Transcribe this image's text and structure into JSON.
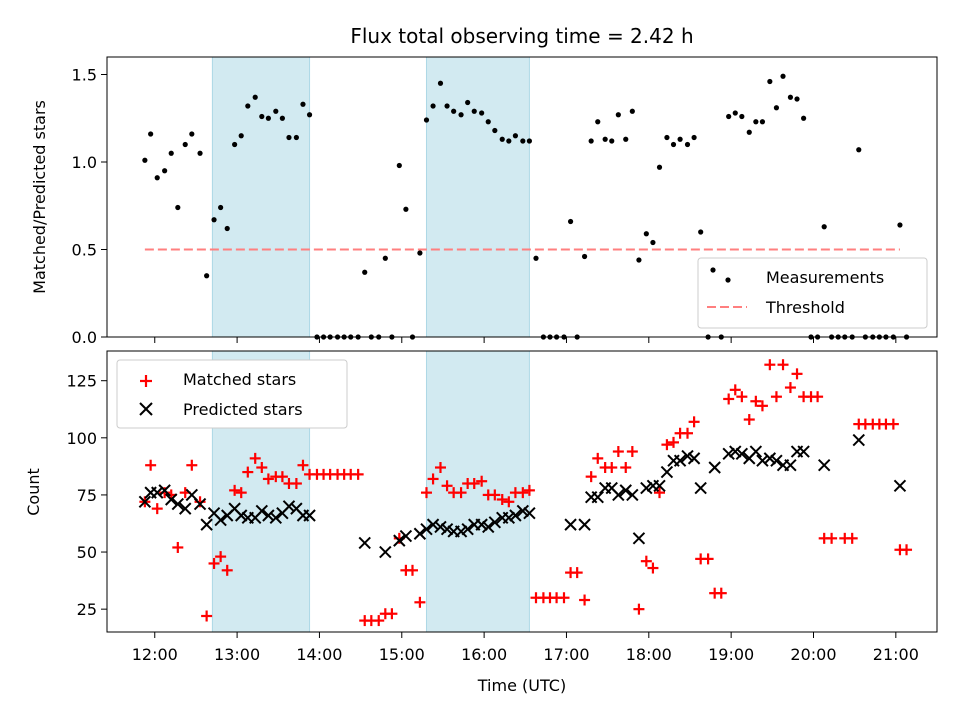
{
  "title": "Flux total observing time = 2.42 h",
  "top": {
    "ylabel": "Matched/Predicted stars",
    "ylim": [
      0,
      1.6
    ],
    "yticks": [
      0.0,
      0.5,
      1.0,
      1.5
    ],
    "ytick_labels": [
      "0.0",
      "0.5",
      "1.0",
      "1.5"
    ],
    "threshold": 0.5,
    "legend": {
      "placement": "lower-right",
      "measurements": "Measurements",
      "threshold": "Threshold"
    },
    "measurements": [
      [
        11.88,
        1.01
      ],
      [
        11.95,
        1.16
      ],
      [
        12.03,
        0.91
      ],
      [
        12.12,
        0.95
      ],
      [
        12.2,
        1.05
      ],
      [
        12.28,
        0.74
      ],
      [
        12.37,
        1.1
      ],
      [
        12.45,
        1.16
      ],
      [
        12.55,
        1.05
      ],
      [
        12.63,
        0.35
      ],
      [
        12.72,
        0.67
      ],
      [
        12.8,
        0.74
      ],
      [
        12.88,
        0.62
      ],
      [
        12.97,
        1.1
      ],
      [
        13.05,
        1.15
      ],
      [
        13.13,
        1.32
      ],
      [
        13.22,
        1.37
      ],
      [
        13.3,
        1.26
      ],
      [
        13.38,
        1.25
      ],
      [
        13.47,
        1.29
      ],
      [
        13.55,
        1.25
      ],
      [
        13.63,
        1.14
      ],
      [
        13.72,
        1.14
      ],
      [
        13.8,
        1.33
      ],
      [
        13.88,
        1.27
      ],
      [
        13.97,
        0
      ],
      [
        14.05,
        0
      ],
      [
        14.13,
        0
      ],
      [
        14.22,
        0
      ],
      [
        14.3,
        0
      ],
      [
        14.38,
        0
      ],
      [
        14.47,
        0
      ],
      [
        14.55,
        0.37
      ],
      [
        14.63,
        0
      ],
      [
        14.72,
        0
      ],
      [
        14.8,
        0.45
      ],
      [
        14.88,
        0
      ],
      [
        14.97,
        0.98
      ],
      [
        15.05,
        0.73
      ],
      [
        15.13,
        0
      ],
      [
        15.22,
        0.48
      ],
      [
        15.3,
        1.24
      ],
      [
        15.38,
        1.32
      ],
      [
        15.47,
        1.45
      ],
      [
        15.55,
        1.32
      ],
      [
        15.63,
        1.29
      ],
      [
        15.72,
        1.27
      ],
      [
        15.8,
        1.34
      ],
      [
        15.88,
        1.29
      ],
      [
        15.97,
        1.28
      ],
      [
        16.05,
        1.23
      ],
      [
        16.13,
        1.18
      ],
      [
        16.22,
        1.13
      ],
      [
        16.3,
        1.12
      ],
      [
        16.38,
        1.15
      ],
      [
        16.47,
        1.12
      ],
      [
        16.55,
        1.12
      ],
      [
        16.63,
        0.45
      ],
      [
        16.72,
        0
      ],
      [
        16.8,
        0
      ],
      [
        16.88,
        0
      ],
      [
        16.97,
        0
      ],
      [
        17.05,
        0.66
      ],
      [
        17.13,
        0
      ],
      [
        17.22,
        0.46
      ],
      [
        17.3,
        1.12
      ],
      [
        17.38,
        1.23
      ],
      [
        17.47,
        1.13
      ],
      [
        17.55,
        1.12
      ],
      [
        17.63,
        1.27
      ],
      [
        17.72,
        1.13
      ],
      [
        17.8,
        1.29
      ],
      [
        17.88,
        0.44
      ],
      [
        17.97,
        0.59
      ],
      [
        18.05,
        0.54
      ],
      [
        18.13,
        0.97
      ],
      [
        18.22,
        1.14
      ],
      [
        18.3,
        1.1
      ],
      [
        18.38,
        1.13
      ],
      [
        18.47,
        1.1
      ],
      [
        18.55,
        1.14
      ],
      [
        18.63,
        0.6
      ],
      [
        18.72,
        0
      ],
      [
        18.8,
        0.36
      ],
      [
        18.88,
        0
      ],
      [
        18.97,
        1.26
      ],
      [
        19.05,
        1.28
      ],
      [
        19.13,
        1.26
      ],
      [
        19.22,
        1.17
      ],
      [
        19.3,
        1.23
      ],
      [
        19.38,
        1.23
      ],
      [
        19.47,
        1.46
      ],
      [
        19.55,
        1.31
      ],
      [
        19.63,
        1.49
      ],
      [
        19.72,
        1.37
      ],
      [
        19.8,
        1.36
      ],
      [
        19.88,
        1.25
      ],
      [
        19.97,
        0
      ],
      [
        20.05,
        0
      ],
      [
        20.13,
        0.63
      ],
      [
        20.22,
        0
      ],
      [
        20.3,
        0
      ],
      [
        20.38,
        0
      ],
      [
        20.47,
        0
      ],
      [
        20.55,
        1.07
      ],
      [
        20.63,
        0
      ],
      [
        20.72,
        0
      ],
      [
        20.8,
        0
      ],
      [
        20.88,
        0
      ],
      [
        20.97,
        0
      ],
      [
        21.05,
        0.64
      ],
      [
        21.13,
        0
      ]
    ]
  },
  "bottom": {
    "ylabel": "Count",
    "xlabel": "Time (UTC)",
    "ylim": [
      15,
      138
    ],
    "yticks": [
      25,
      50,
      75,
      100,
      125
    ],
    "ytick_labels": [
      "25",
      "50",
      "75",
      "100",
      "125"
    ],
    "legend": {
      "placement": "upper-left",
      "matched": "Matched stars",
      "predicted": "Predicted stars"
    },
    "matched": [
      [
        11.88,
        72
      ],
      [
        11.95,
        88
      ],
      [
        12.03,
        69
      ],
      [
        12.12,
        76
      ],
      [
        12.2,
        75
      ],
      [
        12.28,
        52
      ],
      [
        12.37,
        76
      ],
      [
        12.45,
        88
      ],
      [
        12.55,
        72
      ],
      [
        12.63,
        22
      ],
      [
        12.72,
        45
      ],
      [
        12.8,
        48
      ],
      [
        12.88,
        42
      ],
      [
        12.97,
        77
      ],
      [
        13.05,
        76
      ],
      [
        13.13,
        85
      ],
      [
        13.22,
        91
      ],
      [
        13.3,
        87
      ],
      [
        13.38,
        82
      ],
      [
        13.47,
        83
      ],
      [
        13.55,
        83
      ],
      [
        13.63,
        80
      ],
      [
        13.72,
        80
      ],
      [
        13.8,
        88
      ],
      [
        13.88,
        84
      ],
      [
        13.97,
        84
      ],
      [
        14.05,
        84
      ],
      [
        14.13,
        84
      ],
      [
        14.22,
        84
      ],
      [
        14.3,
        84
      ],
      [
        14.38,
        84
      ],
      [
        14.47,
        84
      ],
      [
        14.55,
        20
      ],
      [
        14.63,
        20
      ],
      [
        14.72,
        20
      ],
      [
        14.8,
        23
      ],
      [
        14.88,
        23
      ],
      [
        14.97,
        56
      ],
      [
        15.05,
        42
      ],
      [
        15.13,
        42
      ],
      [
        15.22,
        28
      ],
      [
        15.3,
        76
      ],
      [
        15.38,
        82
      ],
      [
        15.47,
        87
      ],
      [
        15.55,
        79
      ],
      [
        15.63,
        76
      ],
      [
        15.72,
        76
      ],
      [
        15.8,
        80
      ],
      [
        15.88,
        80
      ],
      [
        15.97,
        81
      ],
      [
        16.05,
        75
      ],
      [
        16.13,
        75
      ],
      [
        16.22,
        73
      ],
      [
        16.3,
        72
      ],
      [
        16.38,
        76
      ],
      [
        16.47,
        76
      ],
      [
        16.55,
        77
      ],
      [
        16.63,
        30
      ],
      [
        16.72,
        30
      ],
      [
        16.8,
        30
      ],
      [
        16.88,
        30
      ],
      [
        16.97,
        30
      ],
      [
        17.05,
        41
      ],
      [
        17.13,
        41
      ],
      [
        17.22,
        29
      ],
      [
        17.3,
        83
      ],
      [
        17.38,
        91
      ],
      [
        17.47,
        87
      ],
      [
        17.55,
        87
      ],
      [
        17.63,
        94
      ],
      [
        17.72,
        87
      ],
      [
        17.8,
        94
      ],
      [
        17.88,
        25
      ],
      [
        17.97,
        46
      ],
      [
        18.05,
        43
      ],
      [
        18.13,
        76
      ],
      [
        18.22,
        97
      ],
      [
        18.3,
        98
      ],
      [
        18.38,
        102
      ],
      [
        18.47,
        102
      ],
      [
        18.55,
        107
      ],
      [
        18.63,
        47
      ],
      [
        18.72,
        47
      ],
      [
        18.8,
        32
      ],
      [
        18.88,
        32
      ],
      [
        18.97,
        117
      ],
      [
        19.05,
        121
      ],
      [
        19.13,
        118
      ],
      [
        19.22,
        108
      ],
      [
        19.3,
        116
      ],
      [
        19.38,
        114
      ],
      [
        19.47,
        132
      ],
      [
        19.55,
        118
      ],
      [
        19.63,
        132
      ],
      [
        19.72,
        122
      ],
      [
        19.8,
        128
      ],
      [
        19.88,
        118
      ],
      [
        19.97,
        118
      ],
      [
        20.05,
        118
      ],
      [
        20.13,
        56
      ],
      [
        20.22,
        56
      ],
      [
        20.38,
        56
      ],
      [
        20.47,
        56
      ],
      [
        20.55,
        106
      ],
      [
        20.63,
        106
      ],
      [
        20.72,
        106
      ],
      [
        20.8,
        106
      ],
      [
        20.88,
        106
      ],
      [
        20.97,
        106
      ],
      [
        21.05,
        51
      ],
      [
        21.13,
        51
      ]
    ],
    "predicted": [
      [
        11.88,
        72
      ],
      [
        11.95,
        76
      ],
      [
        12.03,
        76
      ],
      [
        12.12,
        77
      ],
      [
        12.2,
        73
      ],
      [
        12.28,
        71
      ],
      [
        12.37,
        69
      ],
      [
        12.45,
        75
      ],
      [
        12.55,
        71
      ],
      [
        12.63,
        62
      ],
      [
        12.72,
        67
      ],
      [
        12.8,
        64
      ],
      [
        12.88,
        66
      ],
      [
        12.97,
        69
      ],
      [
        13.05,
        66
      ],
      [
        13.13,
        65
      ],
      [
        13.22,
        65
      ],
      [
        13.3,
        68
      ],
      [
        13.38,
        66
      ],
      [
        13.47,
        65
      ],
      [
        13.55,
        67
      ],
      [
        13.63,
        70
      ],
      [
        13.72,
        69
      ],
      [
        13.8,
        66
      ],
      [
        13.88,
        66
      ],
      [
        14.55,
        54
      ],
      [
        14.8,
        50
      ],
      [
        14.97,
        55
      ],
      [
        15.05,
        57
      ],
      [
        15.22,
        58
      ],
      [
        15.3,
        60
      ],
      [
        15.38,
        62
      ],
      [
        15.47,
        61
      ],
      [
        15.55,
        60
      ],
      [
        15.63,
        59
      ],
      [
        15.72,
        59
      ],
      [
        15.8,
        60
      ],
      [
        15.88,
        62
      ],
      [
        15.97,
        62
      ],
      [
        16.05,
        61
      ],
      [
        16.13,
        63
      ],
      [
        16.22,
        65
      ],
      [
        16.3,
        65
      ],
      [
        16.38,
        66
      ],
      [
        16.47,
        68
      ],
      [
        16.55,
        67
      ],
      [
        17.05,
        62
      ],
      [
        17.22,
        62
      ],
      [
        17.3,
        74
      ],
      [
        17.38,
        74
      ],
      [
        17.47,
        78
      ],
      [
        17.55,
        78
      ],
      [
        17.63,
        75
      ],
      [
        17.72,
        77
      ],
      [
        17.8,
        75
      ],
      [
        17.88,
        56
      ],
      [
        17.97,
        78
      ],
      [
        18.05,
        79
      ],
      [
        18.13,
        79
      ],
      [
        18.22,
        85
      ],
      [
        18.3,
        90
      ],
      [
        18.38,
        90
      ],
      [
        18.47,
        92
      ],
      [
        18.55,
        91
      ],
      [
        18.63,
        78
      ],
      [
        18.8,
        87
      ],
      [
        18.97,
        93
      ],
      [
        19.05,
        94
      ],
      [
        19.13,
        93
      ],
      [
        19.22,
        91
      ],
      [
        19.3,
        94
      ],
      [
        19.38,
        90
      ],
      [
        19.47,
        91
      ],
      [
        19.55,
        90
      ],
      [
        19.63,
        88
      ],
      [
        19.72,
        88
      ],
      [
        19.8,
        94
      ],
      [
        19.88,
        94
      ],
      [
        20.13,
        88
      ],
      [
        20.55,
        99
      ],
      [
        21.05,
        79
      ]
    ]
  },
  "xaxis": {
    "xlim": [
      11.42,
      21.5
    ],
    "ticks": [
      12,
      13,
      14,
      15,
      16,
      17,
      18,
      19,
      20,
      21
    ],
    "tick_labels": [
      "12:00",
      "13:00",
      "14:00",
      "15:00",
      "16:00",
      "17:00",
      "18:00",
      "19:00",
      "20:00",
      "21:00"
    ]
  },
  "shaded_windows": [
    [
      12.7,
      13.88
    ],
    [
      15.3,
      16.55
    ]
  ],
  "colors": {
    "measurement": "#000000",
    "threshold": "#ff7f7f",
    "matched": "#ff0000",
    "predicted": "#000000",
    "shade": "#add8e6"
  }
}
